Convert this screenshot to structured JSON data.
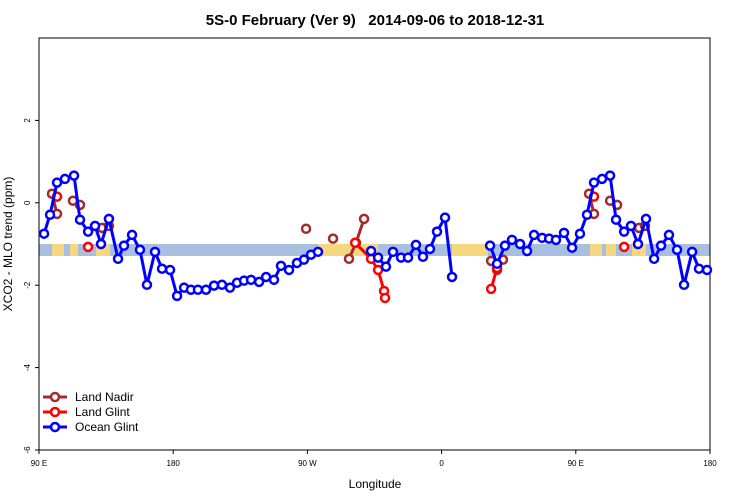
{
  "chart_data": {
    "type": "line",
    "title": "5S-0 February (Ver 9)   2014-09-06 to 2018-12-31",
    "x_label": "Longitude",
    "y_label": "XCO2 - MLO trend (ppm)",
    "xlim": [
      90,
      540
    ],
    "xticks": [
      {
        "value": 90,
        "label": "90 E"
      },
      {
        "value": 180,
        "label": "180"
      },
      {
        "value": 270,
        "label": "90 W"
      },
      {
        "value": 360,
        "label": "0"
      },
      {
        "value": 450,
        "label": "90 E"
      },
      {
        "value": 540,
        "label": "180"
      }
    ],
    "ylim": [
      -6,
      4
    ],
    "yticks": [
      -6,
      -4,
      -2,
      0,
      2
    ],
    "legend": "bottomleft",
    "series": [
      {
        "name": "Land Nadir",
        "color": "#a52a2a",
        "x": [
          98.7,
          102.1,
          107,
          112.8,
          117.5,
          125,
          132.3,
          136.9,
          200,
          269.1,
          278,
          287.2,
          292,
          297.9,
          302.6,
          308.0,
          350,
          393.2,
          397.2,
          401.2,
          430,
          458.9,
          462.2,
          468,
          473.0,
          477.7,
          485,
          492.4,
          496.4
        ],
        "values": [
          0.22,
          -0.27,
          null,
          0.05,
          -0.05,
          null,
          -0.61,
          -0.56,
          null,
          -0.63,
          null,
          -0.87,
          null,
          -1.36,
          -0.97,
          -0.39,
          null,
          -1.41,
          -1.63,
          -1.38,
          null,
          0.22,
          -0.27,
          null,
          0.05,
          -0.05,
          null,
          -0.61,
          -0.56
        ]
      },
      {
        "name": "Land Glint",
        "color": "#ff0000",
        "x": [
          102.1,
          112,
          122.9,
          200,
          302.0,
          312.7,
          317.4,
          321.4,
          322.1,
          350,
          393.2,
          397.2,
          430,
          462.2,
          472,
          482.4
        ],
        "values": [
          0.15,
          null,
          -1.07,
          null,
          -0.97,
          -1.36,
          -1.63,
          -2.14,
          -2.31,
          null,
          -2.09,
          -1.58,
          null,
          0.15,
          null,
          -1.07
        ]
      },
      {
        "name": "Ocean Glint",
        "color": "#0000ff",
        "x": [
          93.4,
          97.4,
          102.1,
          107.4,
          113.5,
          117.5,
          122.9,
          127.6,
          131.6,
          136.9,
          143.0,
          147.0,
          152.4,
          157.7,
          162.4,
          167.8,
          172.5,
          177.9,
          182.6,
          187.3,
          191.9,
          196.6,
          202.0,
          207.4,
          212.7,
          218.1,
          222.8,
          227.5,
          232.2,
          237.6,
          242.3,
          247.6,
          252.3,
          257.7,
          263.0,
          267.7,
          272.4,
          277.1,
          295,
          312.7,
          317.4,
          322.7,
          327.4,
          332.8,
          337.5,
          342.8,
          347.5,
          352.2,
          356.9,
          362.3,
          367.0,
          380,
          392.5,
          397.2,
          402.5,
          407.2,
          412.6,
          417.3,
          422.0,
          427.4,
          432.1,
          436.7,
          442.1,
          447.5,
          452.8,
          457.5,
          462.2,
          467.6,
          473.0,
          477.0,
          482.4,
          487.0,
          491.7,
          497.1,
          502.5,
          507.2,
          512.5,
          517.9,
          522.6,
          528.0,
          532.6,
          538.0
        ],
        "values": [
          -0.75,
          -0.29,
          0.49,
          0.58,
          0.66,
          -0.41,
          -0.7,
          -0.56,
          -1.0,
          -0.39,
          -1.36,
          -1.04,
          -0.78,
          -1.14,
          -1.99,
          -1.19,
          -1.6,
          -1.63,
          -2.26,
          -2.06,
          -2.11,
          -2.11,
          -2.11,
          -2.01,
          -1.99,
          -2.06,
          -1.94,
          -1.89,
          -1.87,
          -1.92,
          -1.8,
          -1.87,
          -1.53,
          -1.63,
          -1.46,
          -1.38,
          -1.26,
          -1.19,
          null,
          -1.17,
          -1.33,
          -1.55,
          -1.19,
          -1.33,
          -1.33,
          -1.02,
          -1.31,
          -1.12,
          -0.7,
          -0.36,
          -1.8,
          null,
          -1.04,
          -1.48,
          -1.04,
          -0.9,
          -1.0,
          -1.17,
          -0.78,
          -0.85,
          -0.87,
          -0.9,
          -0.73,
          -1.09,
          -0.75,
          -0.29,
          0.49,
          0.58,
          0.66,
          -0.41,
          -0.7,
          -0.56,
          -1.0,
          -0.39,
          -1.36,
          -1.04,
          -0.78,
          -1.14,
          -1.99,
          -1.19,
          -1.6,
          -1.63
        ]
      }
    ]
  }
}
